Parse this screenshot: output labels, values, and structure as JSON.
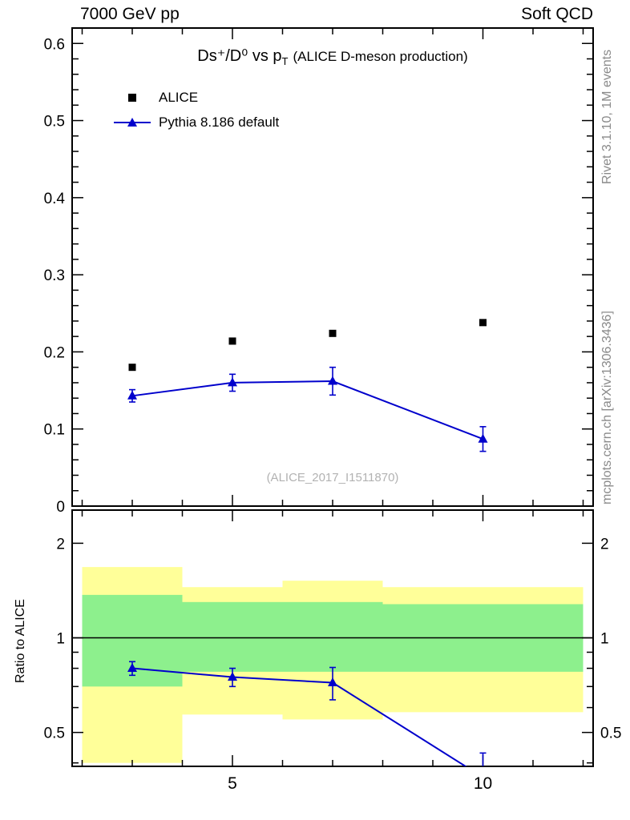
{
  "header": {
    "left": "7000 GeV pp",
    "right": "Soft QCD"
  },
  "title": {
    "main": "Ds⁺/D⁰ vs p",
    "sub": "T",
    "note": "(ALICE D-meson production)"
  },
  "legend": [
    {
      "label": "ALICE",
      "marker": "black-square",
      "color": "#000000"
    },
    {
      "label": "Pythia 8.186 default",
      "marker": "blue-triangle-line",
      "color": "#0000cc"
    }
  ],
  "watermark": "(ALICE_2017_I1511870)",
  "side_labels": {
    "top_right": "Rivet 3.1.10,  1M events",
    "bottom_right": "mcplots.cern.ch [arXiv:1306.3436]",
    "ratio_ylabel": "Ratio to ALICE"
  },
  "chart_data": [
    {
      "type": "scatter",
      "panel": "main",
      "title": "Ds+/D0 vs pT (ALICE D-meson production)",
      "xlabel": "",
      "ylabel": "",
      "xlim": [
        1.8,
        12.2
      ],
      "ylim": [
        0,
        0.62
      ],
      "yticks": [
        0,
        0.1,
        0.2,
        0.3,
        0.4,
        0.5,
        0.6
      ],
      "xticks_major": [
        5,
        10
      ],
      "xticks_minor": [
        2,
        3,
        4,
        6,
        7,
        8,
        9,
        11,
        12
      ],
      "grid": false,
      "legend_position": "upper-left",
      "series": [
        {
          "name": "ALICE",
          "marker": "square",
          "color": "#000000",
          "line": false,
          "x": [
            3,
            5,
            7,
            10
          ],
          "y": [
            0.18,
            0.214,
            0.224,
            0.238
          ]
        },
        {
          "name": "Pythia 8.186 default",
          "marker": "triangle",
          "color": "#0000cc",
          "line": true,
          "x": [
            3,
            5,
            7,
            10
          ],
          "y": [
            0.143,
            0.16,
            0.162,
            0.087
          ],
          "yerr": [
            0.008,
            0.011,
            0.018,
            0.016
          ]
        }
      ]
    },
    {
      "type": "ratio",
      "panel": "ratio",
      "ylabel": "Ratio to ALICE",
      "yscale": "log",
      "xlim": [
        1.8,
        12.2
      ],
      "ylim": [
        0.39,
        2.55
      ],
      "yticks_major": [
        0.5,
        1,
        2
      ],
      "yticks_minor": [
        0.4,
        0.6,
        0.7,
        0.8,
        0.9
      ],
      "xticks_major": [
        5,
        10
      ],
      "xticks_minor": [
        2,
        3,
        4,
        6,
        7,
        8,
        9,
        11,
        12
      ],
      "reference_line": 1,
      "band_colors": {
        "yellow": "#ffff99",
        "green": "#8df08d"
      },
      "bands": [
        {
          "x1": 2,
          "x2": 4,
          "yellow": [
            0.4,
            1.68
          ],
          "green": [
            0.7,
            1.37
          ]
        },
        {
          "x1": 4,
          "x2": 6,
          "yellow": [
            0.57,
            1.45
          ],
          "green": [
            0.78,
            1.3
          ]
        },
        {
          "x1": 6,
          "x2": 8,
          "yellow": [
            0.55,
            1.52
          ],
          "green": [
            0.78,
            1.3
          ]
        },
        {
          "x1": 8,
          "x2": 12,
          "yellow": [
            0.58,
            1.45
          ],
          "green": [
            0.78,
            1.28
          ]
        }
      ],
      "series": [
        {
          "name": "Pythia/ALICE",
          "marker": "triangle",
          "color": "#0000cc",
          "line": true,
          "x": [
            3,
            5,
            7,
            10
          ],
          "y": [
            0.8,
            0.75,
            0.72,
            0.36
          ],
          "yerr": [
            0.04,
            0.05,
            0.085,
            0.07
          ]
        }
      ]
    }
  ]
}
